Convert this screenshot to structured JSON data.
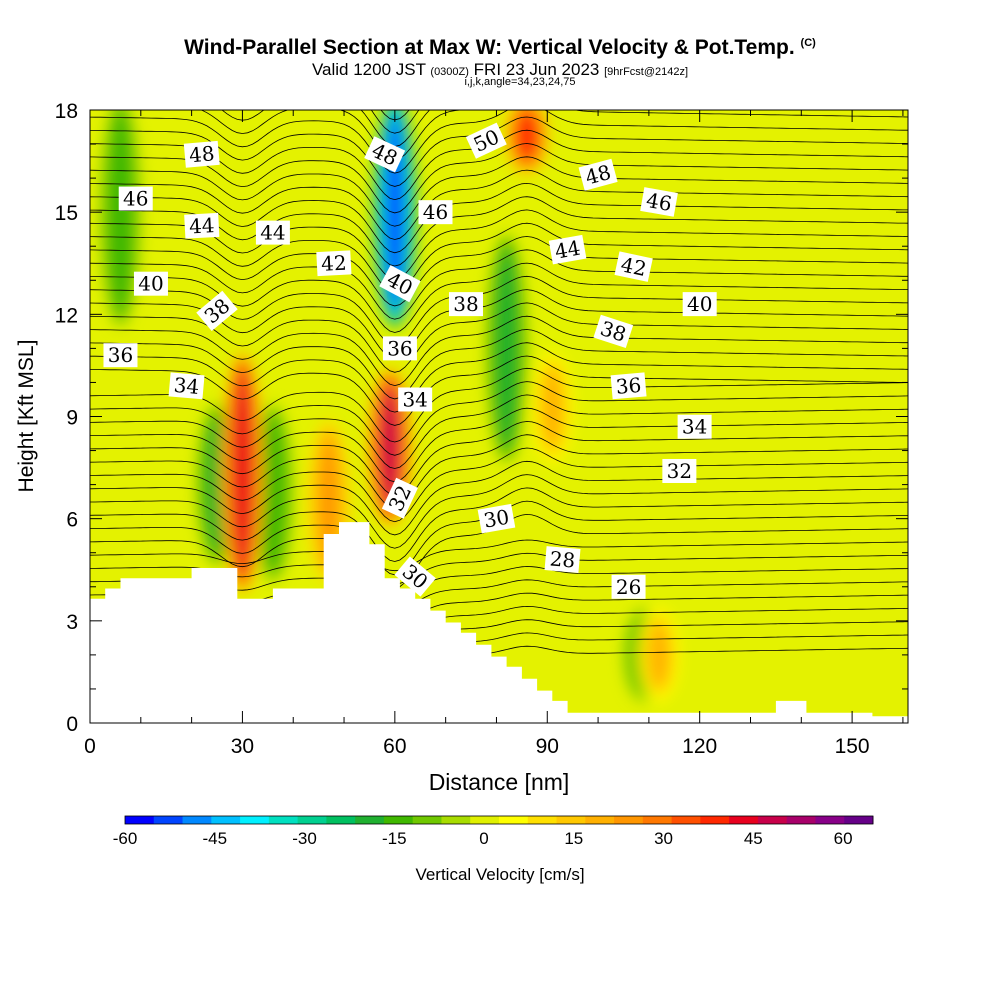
{
  "header": {
    "title": "Wind-Parallel Section at Max W: Vertical Velocity & Pot.Temp.",
    "title_mark": "(C)",
    "valid_time": "Valid 1200 JST",
    "valid_utc": "(0300Z)",
    "valid_date": "FRI 23 Jun 2023",
    "forecast_info": "[9hrFcst@2142z]",
    "indices": "i,j,k,angle=34,23,24,75"
  },
  "chart_data": {
    "type": "heatmap",
    "xlabel": "Distance [nm]",
    "ylabel": "Height [Kft MSL]",
    "xlim": [
      0,
      161
    ],
    "ylim": [
      0,
      18
    ],
    "x_ticks": [
      "0",
      "30",
      "60",
      "90",
      "120",
      "150"
    ],
    "y_ticks": [
      "0",
      "3",
      "6",
      "9",
      "12",
      "15",
      "18"
    ],
    "colorbar": {
      "label": "Vertical Velocity [cm/s]",
      "range": [
        -60,
        65
      ],
      "ticks": [
        "-60",
        "-45",
        "-30",
        "-15",
        "0",
        "15",
        "30",
        "45",
        "60"
      ],
      "colors": [
        "#0000ff",
        "#0044ff",
        "#0088ff",
        "#00c0ff",
        "#00f0ff",
        "#00e0c0",
        "#00d090",
        "#00c060",
        "#20b030",
        "#40b800",
        "#70c800",
        "#a8dc00",
        "#e0f000",
        "#ffff00",
        "#ffe000",
        "#ffc800",
        "#ffb000",
        "#ff9600",
        "#ff7800",
        "#ff5000",
        "#ff2800",
        "#e8001e",
        "#c8004a",
        "#a8006a",
        "#880088",
        "#660088"
      ]
    },
    "updraft_cores": [
      {
        "x": 30,
        "z_range": [
          4.2,
          10.5
        ],
        "w": 45
      },
      {
        "x": 59,
        "z_range": [
          6.2,
          10.0
        ],
        "w": 50
      },
      {
        "x": 86,
        "z_range": [
          16.5,
          18
        ],
        "w": 40
      },
      {
        "x": 47,
        "z_range": [
          4.5,
          8.5
        ],
        "w": 25
      },
      {
        "x": 91,
        "z_range": [
          8,
          10.5
        ],
        "w": 20
      },
      {
        "x": 112,
        "z_range": [
          1,
          3
        ],
        "w": 20
      }
    ],
    "downdraft_cores": [
      {
        "x": 60,
        "z_range": [
          12,
          18
        ],
        "w": -55
      },
      {
        "x": 25,
        "z_range": [
          5,
          9
        ],
        "w": -20
      },
      {
        "x": 36,
        "z_range": [
          4.5,
          9
        ],
        "w": -15
      },
      {
        "x": 82,
        "z_range": [
          8,
          14
        ],
        "w": -20
      },
      {
        "x": 6,
        "z_range": [
          12,
          18
        ],
        "w": -15
      },
      {
        "x": 109,
        "z_range": [
          1,
          3
        ],
        "w": -15
      }
    ],
    "theta_contours": {
      "units": "C",
      "levels": [
        26,
        28,
        30,
        32,
        34,
        36,
        38,
        40,
        42,
        44,
        46,
        48,
        50
      ],
      "labels": [
        {
          "text": "48",
          "x": 22,
          "z": 16.7,
          "angle": -5
        },
        {
          "text": "46",
          "x": 9,
          "z": 15.4,
          "angle": 0
        },
        {
          "text": "44",
          "x": 22,
          "z": 14.6,
          "angle": -3
        },
        {
          "text": "44",
          "x": 36,
          "z": 14.4,
          "angle": 0
        },
        {
          "text": "42",
          "x": 48,
          "z": 13.5,
          "angle": -3
        },
        {
          "text": "40",
          "x": 12,
          "z": 12.9,
          "angle": 0
        },
        {
          "text": "38",
          "x": 25,
          "z": 12.1,
          "angle": -40
        },
        {
          "text": "36",
          "x": 6,
          "z": 10.8,
          "angle": 0
        },
        {
          "text": "34",
          "x": 19,
          "z": 9.9,
          "angle": 5
        },
        {
          "text": "48",
          "x": 58,
          "z": 16.7,
          "angle": 25
        },
        {
          "text": "50",
          "x": 78,
          "z": 17.1,
          "angle": -25
        },
        {
          "text": "46",
          "x": 68,
          "z": 15.0,
          "angle": 0
        },
        {
          "text": "40",
          "x": 61,
          "z": 12.9,
          "angle": 28
        },
        {
          "text": "38",
          "x": 74,
          "z": 12.3,
          "angle": 0
        },
        {
          "text": "36",
          "x": 61,
          "z": 11.0,
          "angle": 0
        },
        {
          "text": "34",
          "x": 64,
          "z": 9.5,
          "angle": 0
        },
        {
          "text": "32",
          "x": 61,
          "z": 6.6,
          "angle": -65
        },
        {
          "text": "30",
          "x": 64,
          "z": 4.3,
          "angle": 40
        },
        {
          "text": "30",
          "x": 80,
          "z": 6.0,
          "angle": -10
        },
        {
          "text": "48",
          "x": 100,
          "z": 16.1,
          "angle": -15
        },
        {
          "text": "46",
          "x": 112,
          "z": 15.3,
          "angle": 10
        },
        {
          "text": "44",
          "x": 94,
          "z": 13.9,
          "angle": -10
        },
        {
          "text": "42",
          "x": 107,
          "z": 13.4,
          "angle": 12
        },
        {
          "text": "40",
          "x": 120,
          "z": 12.3,
          "angle": 0
        },
        {
          "text": "38",
          "x": 103,
          "z": 11.5,
          "angle": 18
        },
        {
          "text": "36",
          "x": 106,
          "z": 9.9,
          "angle": -5
        },
        {
          "text": "34",
          "x": 119,
          "z": 8.7,
          "angle": 0
        },
        {
          "text": "32",
          "x": 116,
          "z": 7.4,
          "angle": 0
        },
        {
          "text": "28",
          "x": 93,
          "z": 4.8,
          "angle": 5
        },
        {
          "text": "26",
          "x": 106,
          "z": 4.0,
          "angle": 0
        }
      ]
    },
    "terrain_profile": [
      {
        "x": 0,
        "z": 3.65
      },
      {
        "x": 3,
        "z": 3.65
      },
      {
        "x": 3,
        "z": 3.95
      },
      {
        "x": 6,
        "z": 3.95
      },
      {
        "x": 6,
        "z": 4.25
      },
      {
        "x": 20,
        "z": 4.25
      },
      {
        "x": 20,
        "z": 4.55
      },
      {
        "x": 29,
        "z": 4.55
      },
      {
        "x": 29,
        "z": 3.65
      },
      {
        "x": 36,
        "z": 3.65
      },
      {
        "x": 36,
        "z": 3.95
      },
      {
        "x": 46,
        "z": 3.95
      },
      {
        "x": 46,
        "z": 5.55
      },
      {
        "x": 49,
        "z": 5.55
      },
      {
        "x": 49,
        "z": 5.9
      },
      {
        "x": 55,
        "z": 5.9
      },
      {
        "x": 55,
        "z": 5.25
      },
      {
        "x": 58,
        "z": 5.25
      },
      {
        "x": 58,
        "z": 4.25
      },
      {
        "x": 61,
        "z": 4.25
      },
      {
        "x": 61,
        "z": 3.95
      },
      {
        "x": 64,
        "z": 3.95
      },
      {
        "x": 64,
        "z": 3.65
      },
      {
        "x": 67,
        "z": 3.65
      },
      {
        "x": 67,
        "z": 3.3
      },
      {
        "x": 70,
        "z": 3.3
      },
      {
        "x": 70,
        "z": 2.95
      },
      {
        "x": 73,
        "z": 2.95
      },
      {
        "x": 73,
        "z": 2.65
      },
      {
        "x": 76,
        "z": 2.65
      },
      {
        "x": 76,
        "z": 2.3
      },
      {
        "x": 79,
        "z": 2.3
      },
      {
        "x": 79,
        "z": 1.95
      },
      {
        "x": 82,
        "z": 1.95
      },
      {
        "x": 82,
        "z": 1.65
      },
      {
        "x": 85,
        "z": 1.65
      },
      {
        "x": 85,
        "z": 1.3
      },
      {
        "x": 88,
        "z": 1.3
      },
      {
        "x": 88,
        "z": 0.95
      },
      {
        "x": 91,
        "z": 0.95
      },
      {
        "x": 91,
        "z": 0.65
      },
      {
        "x": 94,
        "z": 0.65
      },
      {
        "x": 94,
        "z": 0.3
      },
      {
        "x": 135,
        "z": 0.3
      },
      {
        "x": 135,
        "z": 0.65
      },
      {
        "x": 141,
        "z": 0.65
      },
      {
        "x": 141,
        "z": 0.3
      },
      {
        "x": 154,
        "z": 0.3
      },
      {
        "x": 154,
        "z": 0.2
      },
      {
        "x": 161,
        "z": 0.2
      }
    ]
  }
}
